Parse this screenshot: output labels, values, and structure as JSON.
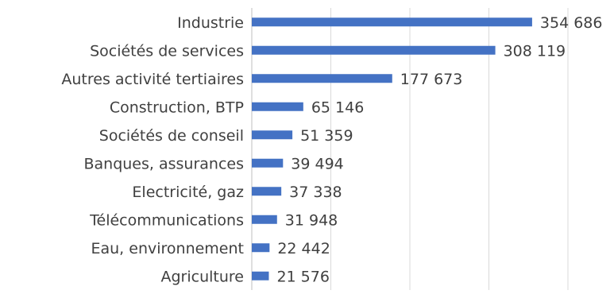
{
  "chart_data": {
    "type": "bar",
    "orientation": "horizontal",
    "categories": [
      "Industrie",
      "Sociétés de services",
      "Autres activité tertiaires",
      "Construction, BTP",
      "Sociétés de conseil",
      "Banques, assurances",
      "Electricité, gaz",
      "Télécommunications",
      "Eau, environnement",
      "Agriculture"
    ],
    "values": [
      354686,
      308119,
      177673,
      65146,
      51359,
      39494,
      37338,
      31948,
      22442,
      21576
    ],
    "value_labels": [
      "354 686",
      "308 119",
      "177 673",
      "65 146",
      "51 359",
      "39 494",
      "37 338",
      "31 948",
      "22 442",
      "21 576"
    ],
    "xlim": [
      0,
      400000
    ],
    "grid": true,
    "bar_color": "#4472c4"
  }
}
